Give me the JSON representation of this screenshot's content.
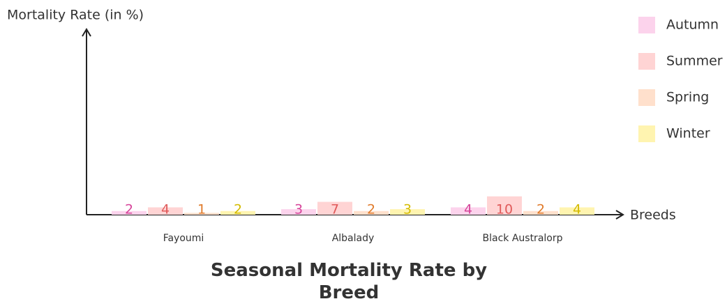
{
  "chart_data": {
    "type": "bar",
    "title": "Seasonal Mortality Rate by Breed",
    "y_label": "Mortality Rate (in %)",
    "x_label": "Breeds",
    "categories": [
      "Fayoumi",
      "Albalady",
      "Black Australorp"
    ],
    "series": [
      {
        "name": "Autumn",
        "color": "#fcd3ec",
        "label_color": "#d6449a",
        "values": [
          2,
          3,
          4
        ]
      },
      {
        "name": "Summer",
        "color": "#ffd4d4",
        "label_color": "#e05a5a",
        "values": [
          4,
          7,
          10
        ]
      },
      {
        "name": "Spring",
        "color": "#ffe0cc",
        "label_color": "#e07a2a",
        "values": [
          1,
          2,
          2
        ]
      },
      {
        "name": "Winter",
        "color": "#fff4b0",
        "label_color": "#d4bb00",
        "values": [
          2,
          3,
          4
        ]
      }
    ],
    "ylim": [
      0,
      100
    ],
    "legend": "top-right"
  }
}
